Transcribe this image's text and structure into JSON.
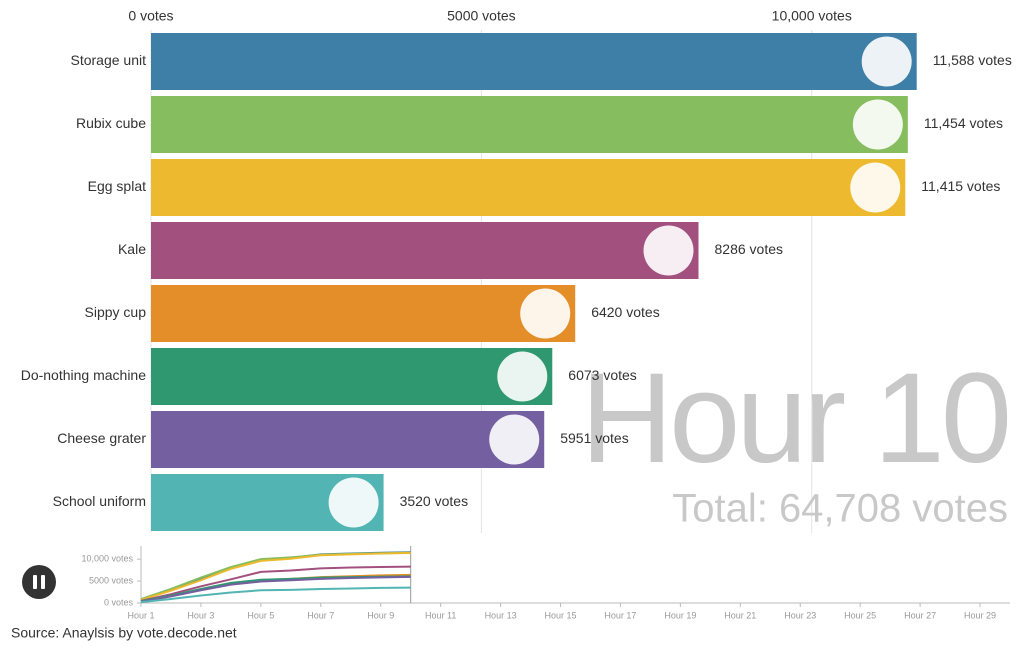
{
  "chart_data": [
    {
      "type": "bar",
      "categories": [
        "Storage unit",
        "Rubix cube",
        "Egg splat",
        "Kale",
        "Sippy cup",
        "Do-nothing machine",
        "Cheese grater",
        "School uniform"
      ],
      "values": [
        11588,
        11454,
        11415,
        8286,
        6420,
        6073,
        5951,
        3520
      ],
      "value_labels": [
        "11,588 votes",
        "11,454 votes",
        "11,415 votes",
        "8286 votes",
        "6420 votes",
        "6073 votes",
        "5951 votes",
        "3520 votes"
      ],
      "colors": [
        "#3d7fa6",
        "#86bd5f",
        "#edb92e",
        "#a2517e",
        "#e48e2a",
        "#2f9870",
        "#745fa0",
        "#52b5b3"
      ],
      "xlim": [
        0,
        13000
      ],
      "xticks": [
        {
          "value": 0,
          "label": "0 votes"
        },
        {
          "value": 5000,
          "label": "5000 votes"
        },
        {
          "value": 10000,
          "label": "10,000 votes"
        }
      ],
      "grid": true,
      "annotations": [
        "Hour 10",
        "Total: 64,708 votes"
      ],
      "source": "Source: Anaylsis by vote.decode.net"
    },
    {
      "type": "line",
      "x": [
        1,
        2,
        3,
        4,
        5,
        6,
        7,
        8,
        9,
        10
      ],
      "series": [
        {
          "color": "#3d7fa6",
          "values": [
            800,
            3000,
            5600,
            8000,
            9900,
            10300,
            11100,
            11300,
            11450,
            11588
          ]
        },
        {
          "color": "#86bd5f",
          "values": [
            900,
            3200,
            5800,
            8200,
            10000,
            10400,
            11000,
            11200,
            11350,
            11454
          ]
        },
        {
          "color": "#edb92e",
          "values": [
            700,
            2800,
            5200,
            7800,
            9600,
            10100,
            10900,
            11100,
            11300,
            11415
          ]
        },
        {
          "color": "#a2517e",
          "values": [
            500,
            2000,
            3800,
            5400,
            7100,
            7400,
            7900,
            8100,
            8200,
            8286
          ]
        },
        {
          "color": "#e48e2a",
          "values": [
            400,
            1600,
            3000,
            4400,
            5200,
            5500,
            5900,
            6100,
            6300,
            6420
          ]
        },
        {
          "color": "#2f9870",
          "values": [
            400,
            1700,
            3200,
            4600,
            5300,
            5500,
            5800,
            5900,
            6000,
            6073
          ]
        },
        {
          "color": "#745fa0",
          "values": [
            300,
            1500,
            2900,
            4200,
            4900,
            5200,
            5500,
            5700,
            5850,
            5951
          ]
        },
        {
          "color": "#52b5b3",
          "values": [
            200,
            900,
            1700,
            2400,
            2900,
            3000,
            3200,
            3300,
            3450,
            3520
          ]
        }
      ],
      "xlim": [
        1,
        30
      ],
      "xticks": [
        {
          "value": 1,
          "label": "Hour 1"
        },
        {
          "value": 3,
          "label": "Hour 3"
        },
        {
          "value": 5,
          "label": "Hour 5"
        },
        {
          "value": 7,
          "label": "Hour 7"
        },
        {
          "value": 9,
          "label": "Hour 9"
        },
        {
          "value": 11,
          "label": "Hour 11"
        },
        {
          "value": 13,
          "label": "Hour 13"
        },
        {
          "value": 15,
          "label": "Hour 15"
        },
        {
          "value": 17,
          "label": "Hour 17"
        },
        {
          "value": 19,
          "label": "Hour 19"
        },
        {
          "value": 21,
          "label": "Hour 21"
        },
        {
          "value": 23,
          "label": "Hour 23"
        },
        {
          "value": 25,
          "label": "Hour 25"
        },
        {
          "value": 27,
          "label": "Hour 27"
        },
        {
          "value": 29,
          "label": "Hour 29"
        }
      ],
      "ylim": [
        0,
        13000
      ],
      "yticks": [
        {
          "value": 0,
          "label": "0 votes"
        },
        {
          "value": 5000,
          "label": "5000 votes"
        },
        {
          "value": 10000,
          "label": "10,000 votes"
        }
      ]
    }
  ]
}
